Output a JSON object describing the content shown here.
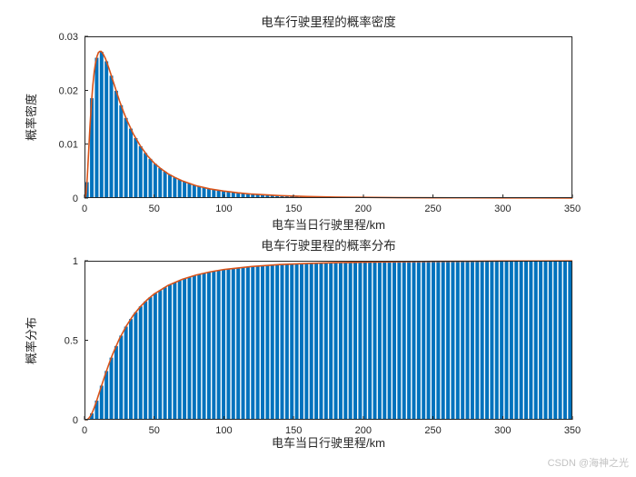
{
  "figure": {
    "watermark": "CSDN @海神之光",
    "background": "#ffffff",
    "axis_color": "#262626"
  },
  "chart_data": [
    {
      "type": "bar",
      "subtype": "histogram-with-fit-line",
      "title": "电车行驶里程的概率密度",
      "xlabel": "电车当日行驶里程/km",
      "ylabel": "概率密度",
      "xlim": [
        0,
        350
      ],
      "ylim": [
        0,
        0.03
      ],
      "grid": false,
      "legend": "none",
      "bar_color": "#0072BD",
      "line_color": "#D95319",
      "bin_width": 3.5,
      "xticks": [
        [
          0,
          "0"
        ],
        [
          50,
          "50"
        ],
        [
          100,
          "100"
        ],
        [
          150,
          "150"
        ],
        [
          200,
          "200"
        ],
        [
          250,
          "250"
        ],
        [
          300,
          "300"
        ],
        [
          350,
          "350"
        ]
      ],
      "yticks": [
        [
          0,
          "0"
        ],
        [
          0.01,
          "0.01"
        ],
        [
          0.02,
          "0.02"
        ],
        [
          0.03,
          "0.03"
        ]
      ],
      "curve": [
        [
          0.5,
          5e-05
        ],
        [
          1,
          0.0006
        ],
        [
          1.5,
          0.002
        ],
        [
          2,
          0.0039
        ],
        [
          2.5,
          0.0063
        ],
        [
          3,
          0.0087
        ],
        [
          3.5,
          0.0112
        ],
        [
          4,
          0.0136
        ],
        [
          5,
          0.0177
        ],
        [
          6,
          0.021
        ],
        [
          7,
          0.0235
        ],
        [
          8,
          0.0252
        ],
        [
          9,
          0.0263
        ],
        [
          10,
          0.027
        ],
        [
          11,
          0.0272
        ],
        [
          12,
          0.0272
        ],
        [
          13,
          0.0269
        ],
        [
          14,
          0.0264
        ],
        [
          15,
          0.0259
        ],
        [
          16,
          0.0252
        ],
        [
          18,
          0.0237
        ],
        [
          20,
          0.0221
        ],
        [
          22,
          0.0205
        ],
        [
          25,
          0.0181
        ],
        [
          28,
          0.016
        ],
        [
          30,
          0.0147
        ],
        [
          35,
          0.0119
        ],
        [
          40,
          0.0097
        ],
        [
          45,
          0.0079
        ],
        [
          50,
          0.0065
        ],
        [
          55,
          0.0054
        ],
        [
          60,
          0.0045
        ],
        [
          65,
          0.0038
        ],
        [
          70,
          0.0032
        ],
        [
          80,
          0.0023
        ],
        [
          90,
          0.0017
        ],
        [
          100,
          0.0013
        ],
        [
          110,
          0.00098
        ],
        [
          120,
          0.00074
        ],
        [
          140,
          0.00046
        ],
        [
          160,
          0.00029
        ],
        [
          180,
          0.00019
        ],
        [
          200,
          0.00013
        ],
        [
          225,
          8e-05
        ],
        [
          250,
          6e-05
        ],
        [
          275,
          4e-05
        ],
        [
          300,
          3e-05
        ],
        [
          325,
          2e-05
        ],
        [
          350,
          1e-05
        ]
      ]
    },
    {
      "type": "bar",
      "subtype": "histogram-with-fit-line",
      "title": "电车行驶里程的概率分布",
      "xlabel": "电车当日行驶里程/km",
      "ylabel": "概率分布",
      "xlim": [
        0,
        350
      ],
      "ylim": [
        0,
        1
      ],
      "grid": false,
      "legend": "none",
      "bar_color": "#0072BD",
      "line_color": "#D95319",
      "bin_width": 3.5,
      "xticks": [
        [
          0,
          "0"
        ],
        [
          50,
          "50"
        ],
        [
          100,
          "100"
        ],
        [
          150,
          "150"
        ],
        [
          200,
          "200"
        ],
        [
          250,
          "250"
        ],
        [
          300,
          "300"
        ],
        [
          350,
          "350"
        ]
      ],
      "yticks": [
        [
          0,
          "0"
        ],
        [
          0.5,
          "0.5"
        ],
        [
          1,
          "1"
        ]
      ],
      "curve": [
        [
          0.5,
          0.0
        ],
        [
          1,
          0.0001
        ],
        [
          2,
          0.001
        ],
        [
          3,
          0.0084
        ],
        [
          4,
          0.0197
        ],
        [
          5,
          0.0353
        ],
        [
          6,
          0.0547
        ],
        [
          7,
          0.077
        ],
        [
          8,
          0.101
        ],
        [
          9,
          0.127
        ],
        [
          10,
          0.154
        ],
        [
          12,
          0.208
        ],
        [
          15,
          0.288
        ],
        [
          18,
          0.362
        ],
        [
          20,
          0.408
        ],
        [
          25,
          0.509
        ],
        [
          30,
          0.59
        ],
        [
          35,
          0.657
        ],
        [
          40,
          0.711
        ],
        [
          45,
          0.755
        ],
        [
          50,
          0.791
        ],
        [
          60,
          0.845
        ],
        [
          70,
          0.883
        ],
        [
          80,
          0.91
        ],
        [
          90,
          0.93
        ],
        [
          100,
          0.945
        ],
        [
          120,
          0.964
        ],
        [
          140,
          0.976
        ],
        [
          160,
          0.983
        ],
        [
          180,
          0.988
        ],
        [
          200,
          0.991
        ],
        [
          225,
          0.994
        ],
        [
          250,
          0.996
        ],
        [
          275,
          0.997
        ],
        [
          300,
          0.998
        ],
        [
          325,
          0.9985
        ],
        [
          350,
          0.999
        ]
      ]
    }
  ]
}
